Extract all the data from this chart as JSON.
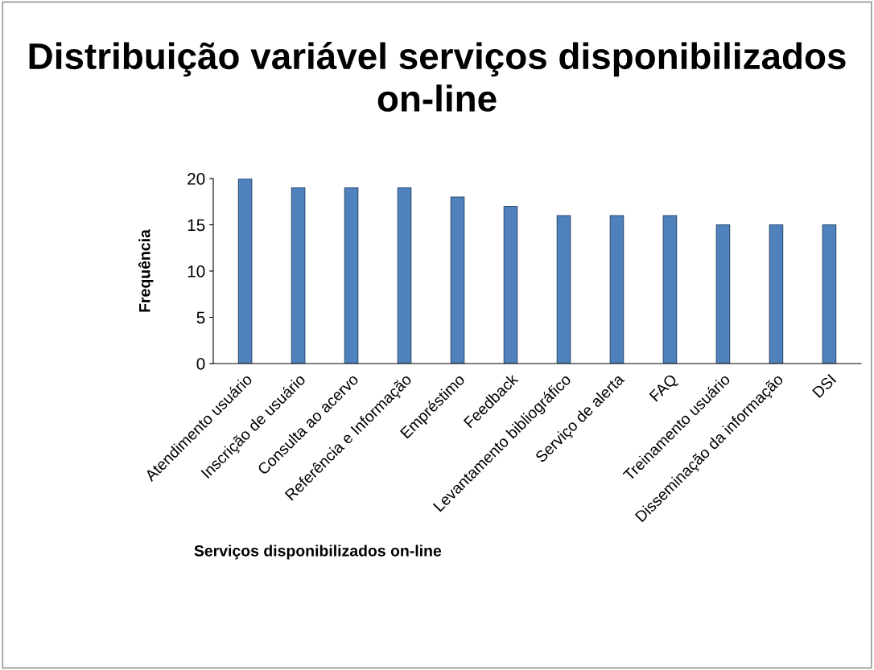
{
  "chart_data": {
    "type": "bar",
    "title": "Distribuição variável serviços disponibilizados on-line",
    "xlabel": "Serviços disponibilizados on-line",
    "ylabel": "Frequência",
    "categories": [
      "Atendimento usuário",
      "Inscrição de usuário",
      "Consulta ao acervo",
      "Referência e Informação",
      "Empréstimo",
      "Feedback",
      "Levantamento bibliográfico",
      "Serviço de alerta",
      "FAQ",
      "Treinamento usuário",
      "Disseminação da informação",
      "DSI"
    ],
    "values": [
      20,
      19,
      19,
      19,
      18,
      17,
      16,
      16,
      16,
      15,
      15,
      15
    ],
    "color": "#4f81bd",
    "ylim": [
      0,
      20
    ],
    "yticks": [
      0,
      5,
      10,
      15,
      20
    ],
    "grid": false,
    "legend": false
  }
}
